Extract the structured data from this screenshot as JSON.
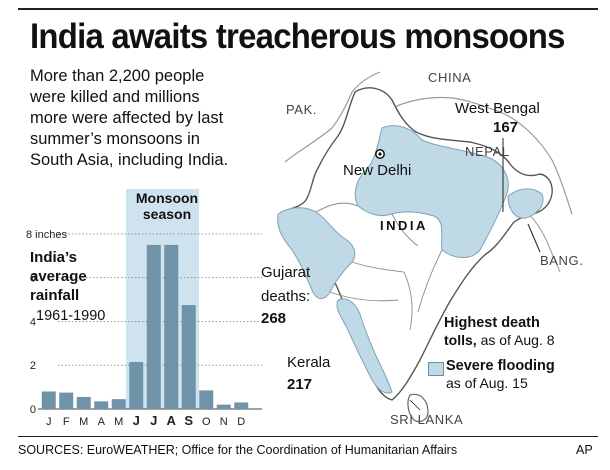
{
  "header": {
    "title": "India awaits treacherous monsoons",
    "subtitle_lines": [
      "More than 2,200 people",
      "were killed and millions",
      "more were affected by last",
      "summer’s monsoons in",
      "South Asia, including India."
    ]
  },
  "map": {
    "countries": {
      "china": "CHINA",
      "pakistan": "PAK.",
      "nepal": "NEPAL",
      "india": "INDIA",
      "bangladesh": "BANG.",
      "sri_lanka": "SRI LANKA"
    },
    "capital": "New Delhi",
    "states": {
      "west_bengal": {
        "name": "West Bengal",
        "deaths": "167"
      },
      "gujarat": {
        "name_line1": "Gujarat",
        "name_line2": "deaths:",
        "deaths": "268"
      },
      "kerala": {
        "name": "Kerala",
        "deaths": "217"
      }
    },
    "legend": {
      "death_title_line1": "Highest death",
      "death_title_line2": "tolls,",
      "death_date": "as of Aug. 8",
      "flood_title": "Severe flooding",
      "flood_date": "as of Aug. 15",
      "flood_color": "#bfd9e6"
    }
  },
  "chart_data": {
    "type": "bar",
    "title_lines": [
      "India’s",
      "average",
      "rainfall"
    ],
    "period": "1961-1990",
    "unit_label": "8 inches",
    "categories": [
      "J",
      "F",
      "M",
      "A",
      "M",
      "J",
      "J",
      "A",
      "S",
      "O",
      "N",
      "D"
    ],
    "monsoon_months": [
      5,
      6,
      7,
      8
    ],
    "values": [
      0.8,
      0.75,
      0.55,
      0.35,
      0.45,
      2.15,
      7.5,
      7.5,
      4.75,
      0.85,
      0.2,
      0.3
    ],
    "ylim": [
      0,
      8.5
    ],
    "yticks": [
      0,
      2,
      4,
      6,
      8
    ],
    "ytick_labels": [
      "0",
      "2",
      "4",
      "6",
      "8 inches"
    ],
    "highlight_label_lines": [
      "Monsoon",
      "season"
    ],
    "bar_color": "#6f93a8",
    "highlight_color": "#cfe3ee"
  },
  "footer": {
    "sources": "SOURCES: EuroWEATHER; Office for the Coordination of Humanitarian Affairs",
    "credit": "AP"
  }
}
